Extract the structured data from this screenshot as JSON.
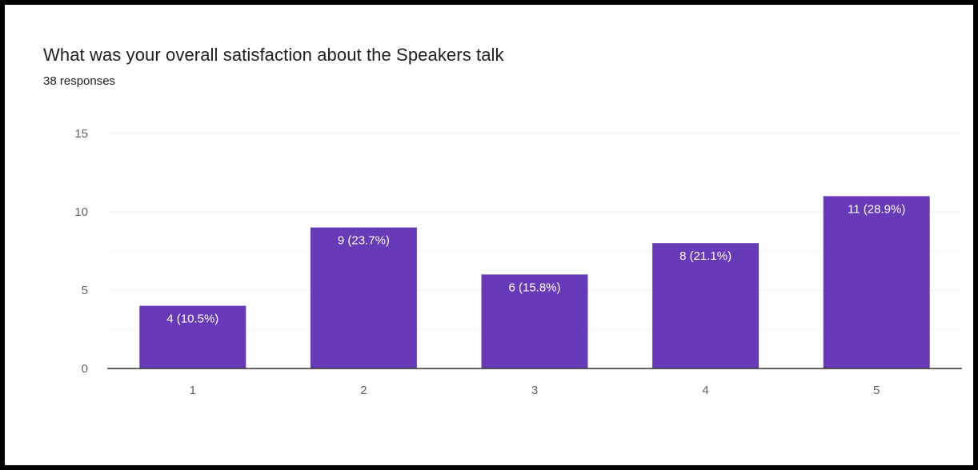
{
  "title": "What was your overall satisfaction about the Speakers talk",
  "subtitle": "38 responses",
  "colors": {
    "bar": "#673ab7",
    "gridline": "#ececec",
    "axis": "#333333"
  },
  "chart_data": {
    "type": "bar",
    "title": "What was your overall satisfaction about the Speakers talk",
    "subtitle": "38 responses",
    "categories": [
      "1",
      "2",
      "3",
      "4",
      "5"
    ],
    "values": [
      4,
      9,
      6,
      8,
      11
    ],
    "data_labels": [
      "4 (10.5%)",
      "9 (23.7%)",
      "6 (15.8%)",
      "8 (21.1%)",
      "11 (28.9%)"
    ],
    "ylim": [
      0,
      15
    ],
    "yticks": [
      "0",
      "5",
      "10",
      "15"
    ],
    "grid": true,
    "legend": "none"
  }
}
